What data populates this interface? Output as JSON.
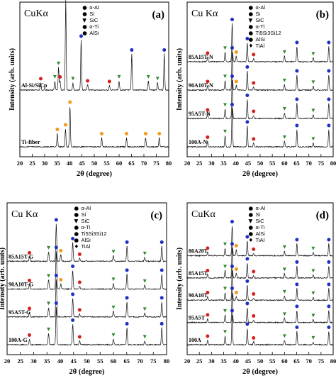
{
  "colors": {
    "alpha_al": "#1f2fbf",
    "si": "#d62020",
    "sic": "#2e8b2e",
    "alpha_ti": "#f29a1a",
    "ti_al_si": "#8a2be2",
    "alsi": "#111111",
    "tial": "#111111"
  },
  "chart_data": [
    {
      "panel": "(a)",
      "type": "line",
      "source_label": "CuKα",
      "xlabel": "2θ (degree)",
      "ylabel": "Intensity (arb. units)",
      "xlim": [
        20,
        80
      ],
      "xticks": [
        "20",
        "25",
        "30",
        "35",
        "40",
        "45",
        "50",
        "55",
        "60",
        "65",
        "70",
        "75",
        "80"
      ],
      "legend": [
        "α-Al",
        "Si",
        "SiC",
        "α-Ti",
        "AlSi"
      ],
      "series": [
        {
          "name": "Al-Si/SiCp",
          "peaks": [
            [
              28.4,
              0.08,
              "si"
            ],
            [
              34.1,
              0.1,
              "sic"
            ],
            [
              35.6,
              0.25,
              "sic"
            ],
            [
              36.2,
              0.1,
              "si"
            ],
            [
              38.5,
              1.0,
              "alpha_al"
            ],
            [
              41.4,
              0.08,
              "sic"
            ],
            [
              44.7,
              0.55,
              "alpha_al"
            ],
            [
              47.3,
              0.06,
              "si"
            ],
            [
              56.1,
              0.05,
              "si"
            ],
            [
              60.0,
              0.1,
              "sic"
            ],
            [
              65.1,
              0.4,
              "alpha_al"
            ],
            [
              71.8,
              0.1,
              "sic"
            ],
            [
              75.5,
              0.08,
              "sic"
            ],
            [
              78.2,
              0.4,
              "alpha_al"
            ]
          ]
        },
        {
          "name": "Ti-fiber",
          "peaks": [
            [
              35.1,
              0.15,
              "alpha_ti"
            ],
            [
              38.4,
              0.2,
              "alpha_ti"
            ],
            [
              40.2,
              0.45,
              "alpha_ti"
            ],
            [
              53.0,
              0.1,
              "alpha_ti"
            ],
            [
              63.0,
              0.1,
              "alpha_ti"
            ],
            [
              70.7,
              0.1,
              "alpha_ti"
            ],
            [
              76.2,
              0.1,
              "alpha_ti"
            ]
          ]
        }
      ]
    },
    {
      "panel": "(b)",
      "type": "line",
      "source_label": "Cu Kα",
      "xlabel": "2θ (degree)",
      "ylabel": "Intensity (arb. units)",
      "xlim": [
        20,
        80
      ],
      "xticks": [
        "20",
        "25",
        "30",
        "35",
        "40",
        "45",
        "50",
        "55",
        "60",
        "65",
        "70",
        "75",
        "80"
      ],
      "legend": [
        "α-Al",
        "Si",
        "SiC",
        "α-Ti",
        "Ti5Si3Si12",
        "AlSi",
        "TiAl"
      ],
      "series": [
        {
          "name": "85A15T-N",
          "peaks": [
            [
              28.4,
              0.12,
              "si"
            ],
            [
              35.6,
              0.25,
              "sic"
            ],
            [
              38.5,
              1.0,
              "alpha_al"
            ],
            [
              40.2,
              0.15,
              "alpha_ti"
            ],
            [
              44.7,
              0.5,
              "alpha_al"
            ],
            [
              47.3,
              0.08,
              "si"
            ],
            [
              60.0,
              0.15,
              "sic"
            ],
            [
              65.1,
              0.4,
              "alpha_al"
            ],
            [
              71.8,
              0.1,
              "sic"
            ],
            [
              78.2,
              0.4,
              "alpha_al"
            ]
          ]
        },
        {
          "name": "90A10T-N",
          "peaks": [
            [
              28.4,
              0.12,
              "si"
            ],
            [
              35.6,
              0.25,
              "sic"
            ],
            [
              38.5,
              1.0,
              "alpha_al"
            ],
            [
              40.2,
              0.12,
              "alpha_ti"
            ],
            [
              44.7,
              0.5,
              "alpha_al"
            ],
            [
              47.3,
              0.08,
              "si"
            ],
            [
              60.0,
              0.15,
              "sic"
            ],
            [
              65.1,
              0.4,
              "alpha_al"
            ],
            [
              71.8,
              0.1,
              "sic"
            ],
            [
              78.2,
              0.4,
              "alpha_al"
            ]
          ]
        },
        {
          "name": "95A5T-N",
          "peaks": [
            [
              28.4,
              0.12,
              "si"
            ],
            [
              35.6,
              0.25,
              "sic"
            ],
            [
              38.5,
              1.0,
              "alpha_al"
            ],
            [
              44.7,
              0.5,
              "alpha_al"
            ],
            [
              47.3,
              0.08,
              "si"
            ],
            [
              60.0,
              0.15,
              "sic"
            ],
            [
              65.1,
              0.4,
              "alpha_al"
            ],
            [
              71.8,
              0.1,
              "sic"
            ],
            [
              78.2,
              0.4,
              "alpha_al"
            ]
          ]
        },
        {
          "name": "100A-N",
          "peaks": [
            [
              28.4,
              0.15,
              "si"
            ],
            [
              35.6,
              0.3,
              "sic"
            ],
            [
              38.5,
              1.0,
              "alpha_al"
            ],
            [
              44.7,
              0.55,
              "alpha_al"
            ],
            [
              47.3,
              0.1,
              "si"
            ],
            [
              60.0,
              0.15,
              "sic"
            ],
            [
              65.1,
              0.45,
              "alpha_al"
            ],
            [
              71.8,
              0.1,
              "sic"
            ],
            [
              78.2,
              0.45,
              "alpha_al"
            ]
          ]
        }
      ]
    },
    {
      "panel": "(c)",
      "type": "line",
      "source_label": "Cu Kα",
      "xlabel": "2θ (degree)",
      "ylabel": "Intensity (arb. units)",
      "xlim": [
        20,
        80
      ],
      "xticks": [
        "20",
        "25",
        "30",
        "35",
        "40",
        "45",
        "50",
        "55",
        "60",
        "65",
        "70",
        "75",
        "80"
      ],
      "legend": [
        "α-Al",
        "Si",
        "SiC",
        "α-Ti",
        "Ti5Si3Si12",
        "AlSi",
        "TiAl"
      ],
      "series": [
        {
          "name": "85A15T-G",
          "peaks": [
            [
              28.4,
              0.12,
              "si"
            ],
            [
              35.6,
              0.25,
              "sic"
            ],
            [
              38.5,
              1.0,
              "alpha_al"
            ],
            [
              40.2,
              0.18,
              "alpha_ti"
            ],
            [
              44.7,
              0.5,
              "alpha_al"
            ],
            [
              47.3,
              0.08,
              "si"
            ],
            [
              60.0,
              0.15,
              "sic"
            ],
            [
              65.1,
              0.4,
              "alpha_al"
            ],
            [
              71.8,
              0.1,
              "sic"
            ],
            [
              78.2,
              0.4,
              "alpha_al"
            ]
          ]
        },
        {
          "name": "90A10T-G",
          "peaks": [
            [
              28.4,
              0.12,
              "si"
            ],
            [
              35.6,
              0.25,
              "sic"
            ],
            [
              38.5,
              1.0,
              "alpha_al"
            ],
            [
              40.2,
              0.14,
              "alpha_ti"
            ],
            [
              44.7,
              0.5,
              "alpha_al"
            ],
            [
              47.3,
              0.08,
              "si"
            ],
            [
              60.0,
              0.15,
              "sic"
            ],
            [
              65.1,
              0.4,
              "alpha_al"
            ],
            [
              71.8,
              0.1,
              "sic"
            ],
            [
              78.2,
              0.4,
              "alpha_al"
            ]
          ]
        },
        {
          "name": "95A5T-G",
          "peaks": [
            [
              28.4,
              0.12,
              "si"
            ],
            [
              35.6,
              0.25,
              "sic"
            ],
            [
              38.5,
              1.0,
              "alpha_al"
            ],
            [
              44.7,
              0.5,
              "alpha_al"
            ],
            [
              47.3,
              0.08,
              "si"
            ],
            [
              60.0,
              0.15,
              "sic"
            ],
            [
              65.1,
              0.4,
              "alpha_al"
            ],
            [
              71.8,
              0.1,
              "sic"
            ],
            [
              78.2,
              0.4,
              "alpha_al"
            ]
          ]
        },
        {
          "name": "100A-G",
          "peaks": [
            [
              28.4,
              0.15,
              "si"
            ],
            [
              35.6,
              0.3,
              "sic"
            ],
            [
              38.5,
              1.0,
              "alpha_al"
            ],
            [
              44.7,
              0.55,
              "alpha_al"
            ],
            [
              47.3,
              0.1,
              "si"
            ],
            [
              60.0,
              0.15,
              "sic"
            ],
            [
              65.1,
              0.45,
              "alpha_al"
            ],
            [
              71.8,
              0.1,
              "sic"
            ],
            [
              78.2,
              0.45,
              "alpha_al"
            ]
          ]
        }
      ]
    },
    {
      "panel": "(d)",
      "type": "line",
      "source_label": "CuKα",
      "xlabel": "2θ (degree)",
      "ylabel": "Intensity (arb. units)",
      "xlim": [
        20,
        80
      ],
      "xticks": [
        "20",
        "25",
        "30",
        "35",
        "40",
        "45",
        "50",
        "55",
        "60",
        "65",
        "70",
        "75",
        "80"
      ],
      "legend": [
        "α-Al",
        "Si",
        "SiC",
        "α-Ti",
        "AlSi",
        "TiAl"
      ],
      "series": [
        {
          "name": "80A20T",
          "peaks": [
            [
              28.4,
              0.12,
              "si"
            ],
            [
              35.6,
              0.25,
              "sic"
            ],
            [
              38.5,
              1.0,
              "alpha_al"
            ],
            [
              40.2,
              0.2,
              "alpha_ti"
            ],
            [
              44.7,
              0.5,
              "alpha_al"
            ],
            [
              47.3,
              0.08,
              "si"
            ],
            [
              60.0,
              0.15,
              "sic"
            ],
            [
              65.1,
              0.4,
              "alpha_al"
            ],
            [
              71.8,
              0.1,
              "sic"
            ],
            [
              78.2,
              0.4,
              "alpha_al"
            ]
          ]
        },
        {
          "name": "85A15T",
          "peaks": [
            [
              28.4,
              0.12,
              "si"
            ],
            [
              35.6,
              0.25,
              "sic"
            ],
            [
              38.5,
              1.0,
              "alpha_al"
            ],
            [
              40.2,
              0.16,
              "alpha_ti"
            ],
            [
              44.7,
              0.5,
              "alpha_al"
            ],
            [
              47.3,
              0.08,
              "si"
            ],
            [
              60.0,
              0.15,
              "sic"
            ],
            [
              65.1,
              0.4,
              "alpha_al"
            ],
            [
              71.8,
              0.1,
              "sic"
            ],
            [
              78.2,
              0.4,
              "alpha_al"
            ]
          ]
        },
        {
          "name": "90A10T",
          "peaks": [
            [
              28.4,
              0.12,
              "si"
            ],
            [
              35.6,
              0.25,
              "sic"
            ],
            [
              38.5,
              1.0,
              "alpha_al"
            ],
            [
              40.2,
              0.12,
              "alpha_ti"
            ],
            [
              44.7,
              0.5,
              "alpha_al"
            ],
            [
              47.3,
              0.08,
              "si"
            ],
            [
              60.0,
              0.15,
              "sic"
            ],
            [
              65.1,
              0.4,
              "alpha_al"
            ],
            [
              71.8,
              0.1,
              "sic"
            ],
            [
              78.2,
              0.4,
              "alpha_al"
            ]
          ]
        },
        {
          "name": "95A5T",
          "peaks": [
            [
              28.4,
              0.12,
              "si"
            ],
            [
              35.6,
              0.25,
              "sic"
            ],
            [
              38.5,
              1.0,
              "alpha_al"
            ],
            [
              44.7,
              0.5,
              "alpha_al"
            ],
            [
              47.3,
              0.08,
              "si"
            ],
            [
              60.0,
              0.15,
              "sic"
            ],
            [
              65.1,
              0.4,
              "alpha_al"
            ],
            [
              71.8,
              0.1,
              "sic"
            ],
            [
              78.2,
              0.4,
              "alpha_al"
            ]
          ]
        },
        {
          "name": "100A",
          "peaks": [
            [
              28.4,
              0.15,
              "si"
            ],
            [
              35.6,
              0.3,
              "sic"
            ],
            [
              38.5,
              1.0,
              "alpha_al"
            ],
            [
              44.7,
              0.55,
              "alpha_al"
            ],
            [
              47.3,
              0.1,
              "si"
            ],
            [
              60.0,
              0.15,
              "sic"
            ],
            [
              65.1,
              0.45,
              "alpha_al"
            ],
            [
              71.8,
              0.1,
              "sic"
            ],
            [
              78.2,
              0.45,
              "alpha_al"
            ]
          ]
        }
      ]
    }
  ]
}
